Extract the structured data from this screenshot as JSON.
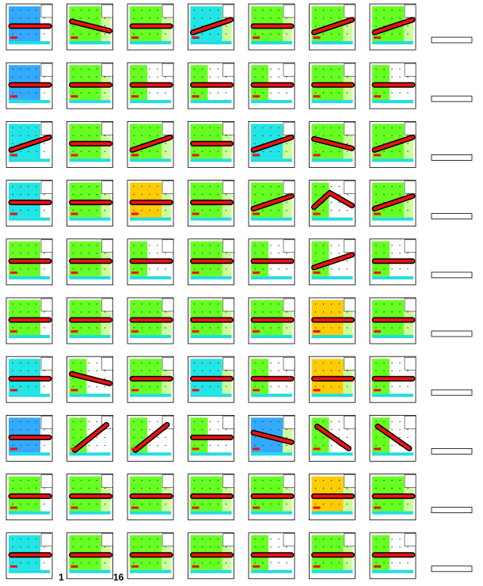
{
  "footer_labels": [
    "1",
    "16"
  ]
}
